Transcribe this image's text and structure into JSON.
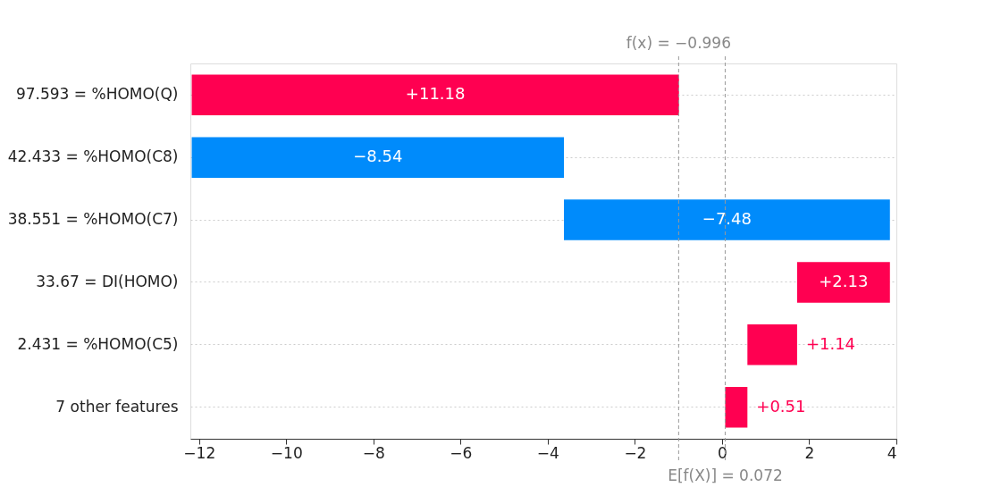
{
  "chart_data": {
    "type": "bar",
    "orientation": "horizontal",
    "categories": [
      "97.593 = %HOMO(Q)",
      "42.433 = %HOMO(C8)",
      "38.551 = %HOMO(C7)",
      "33.67 = DI(HOMO)",
      "2.431 = %HOMO(C5)",
      "7 other features"
    ],
    "values": [
      11.18,
      -8.54,
      -7.48,
      2.13,
      1.14,
      0.51
    ],
    "base": [
      -12.168,
      -3.628,
      3.852,
      1.722,
      0.582,
      0.072
    ],
    "colors": [
      "#ff0051",
      "#008bfb",
      "#008bfb",
      "#ff0051",
      "#ff0051",
      "#ff0051"
    ],
    "value_labels": [
      "+11.18",
      "−8.54",
      "−7.48",
      "+2.13",
      "+1.14",
      "+0.51"
    ],
    "xlim": [
      -12.2,
      4.0
    ],
    "xticks": [
      {
        "value": -12,
        "label": "−12"
      },
      {
        "value": -10,
        "label": "−10"
      },
      {
        "value": -8,
        "label": "−8"
      },
      {
        "value": -6,
        "label": "−6"
      },
      {
        "value": -4,
        "label": "−4"
      },
      {
        "value": -2,
        "label": "−2"
      },
      0,
      2,
      4
    ],
    "ref_lines": [
      {
        "axis": "x",
        "value": -0.996,
        "label": "f(x) = −0.996",
        "color": "#999999",
        "line_style": "dashed"
      },
      {
        "axis": "x",
        "value": 0.072,
        "label": "E[f(X)] = 0.072",
        "color": "#999999",
        "line_style": "dashed"
      }
    ],
    "grid": "y"
  }
}
